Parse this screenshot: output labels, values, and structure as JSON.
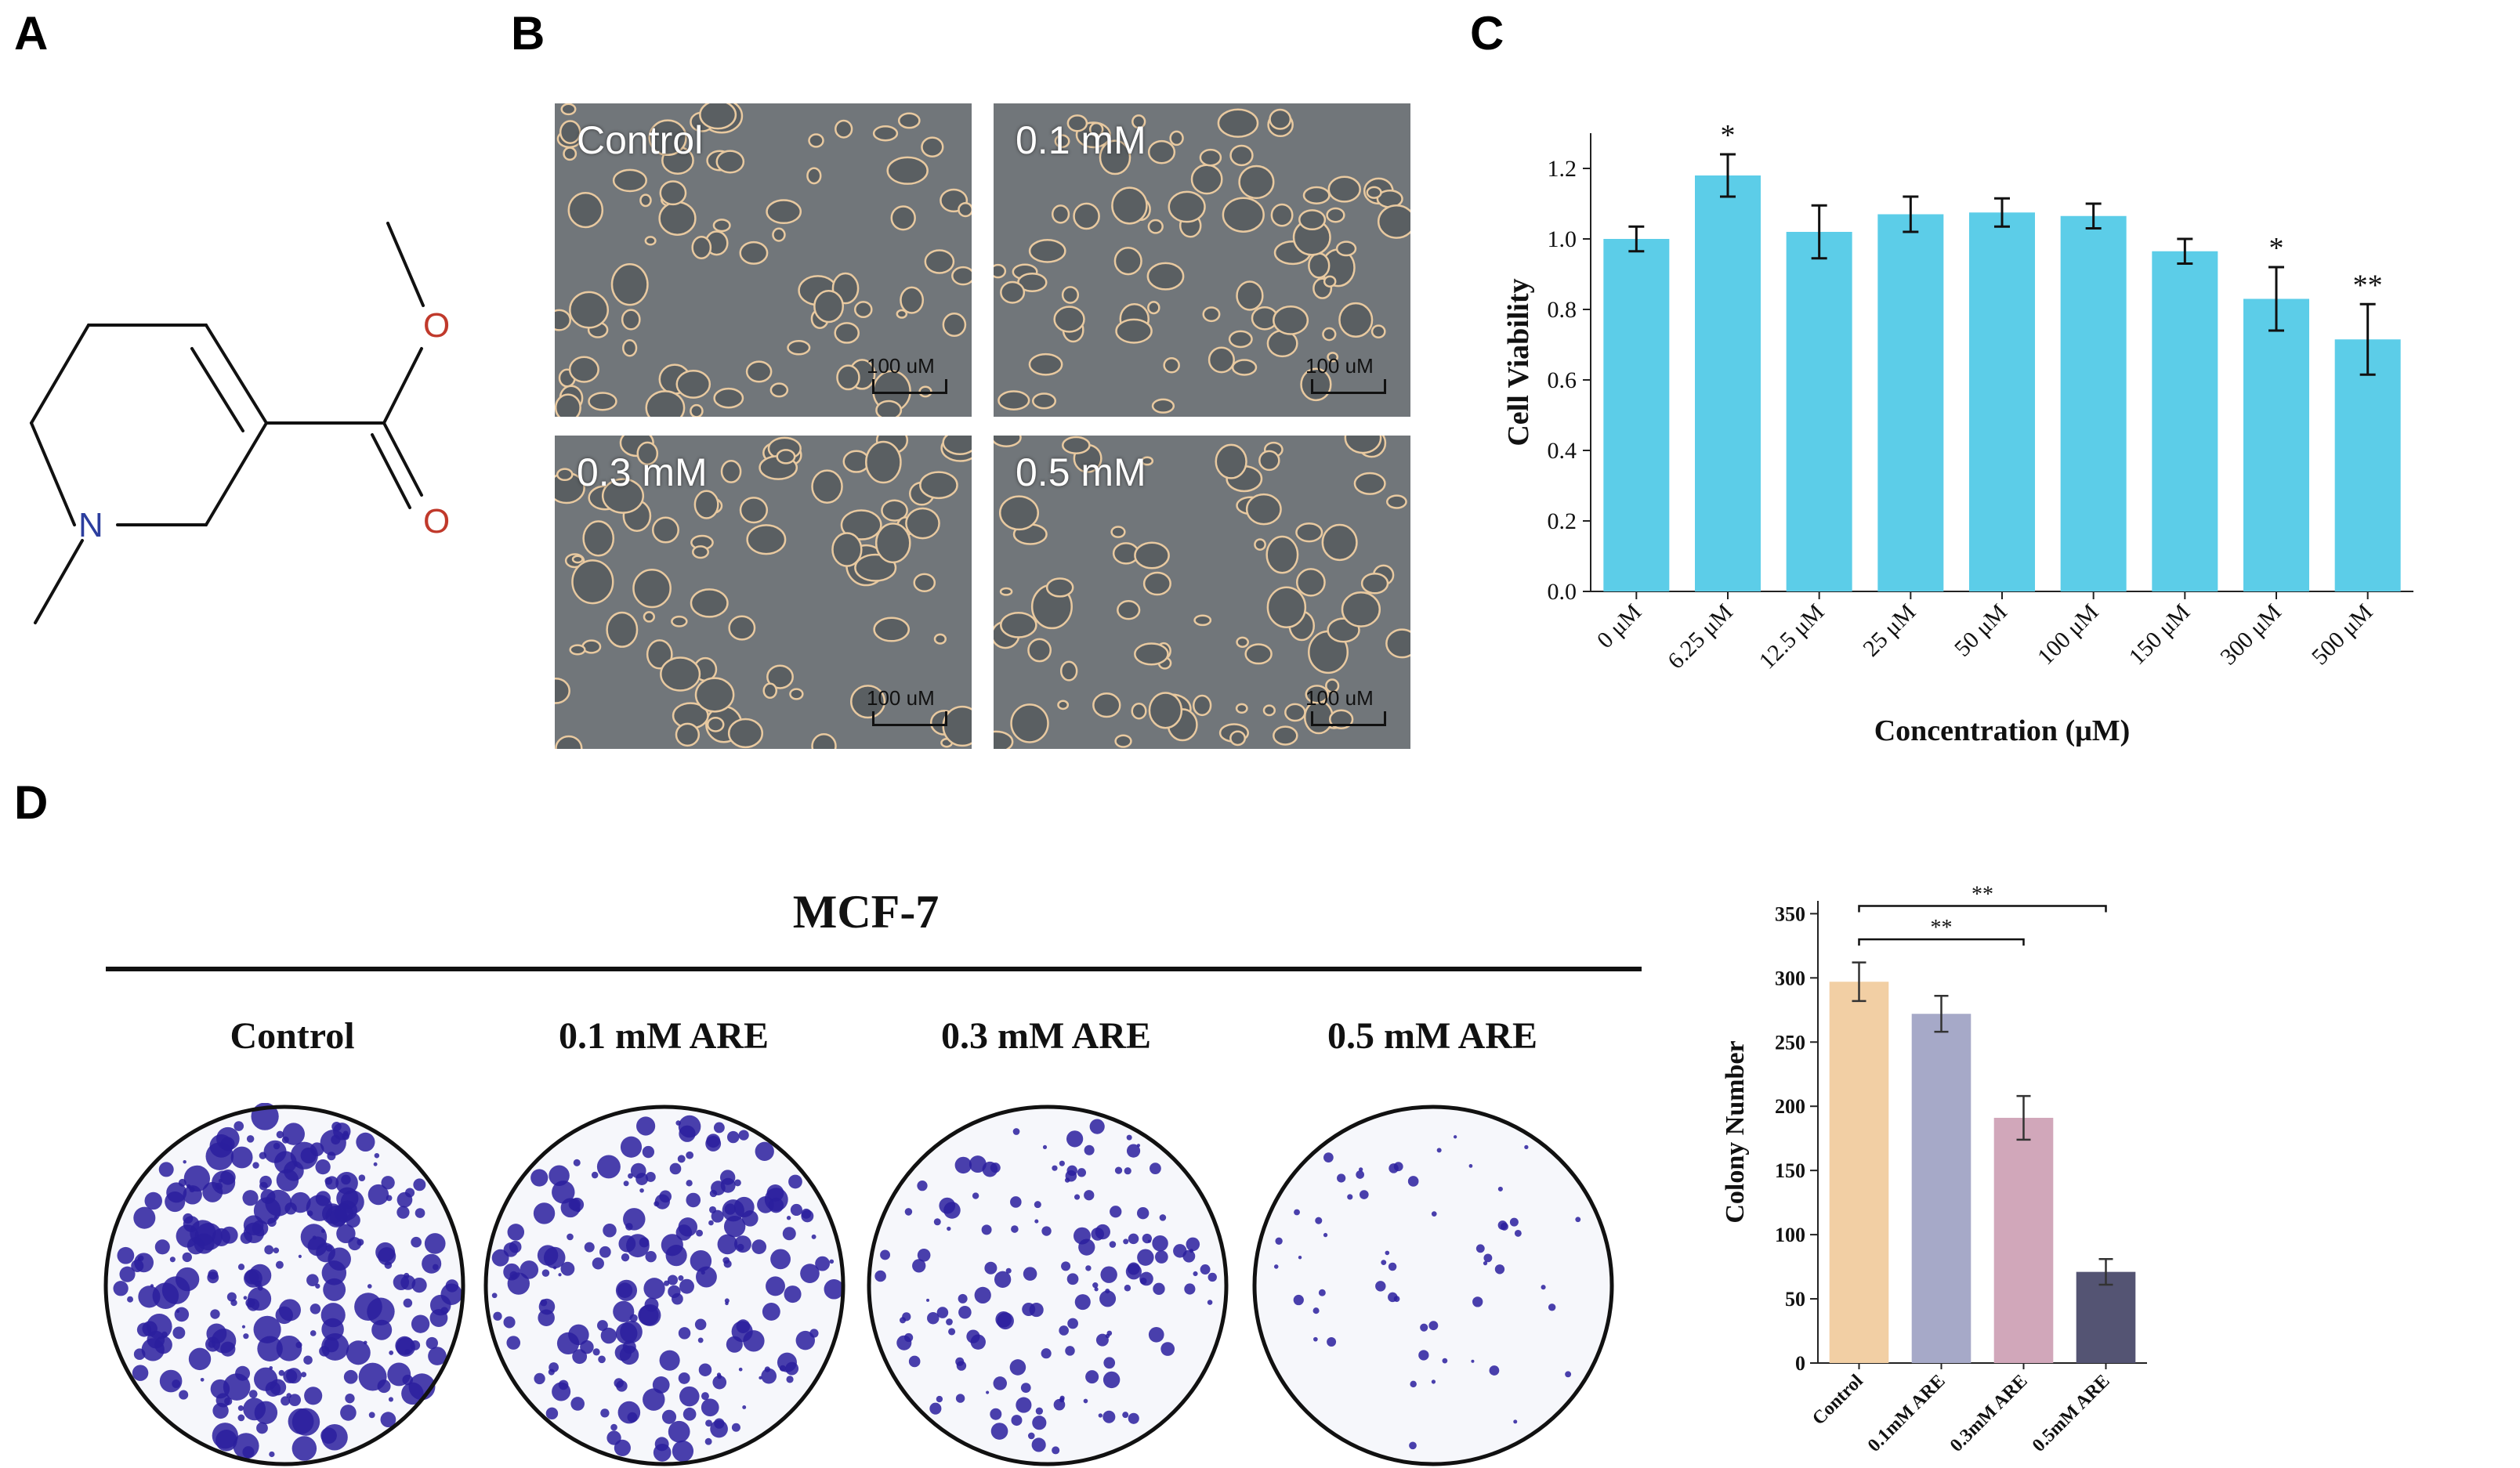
{
  "panels": {
    "a": "A",
    "b": "B",
    "c": "C",
    "d": "D"
  },
  "molecule": {
    "atoms": {
      "o1": "O",
      "o2": "O",
      "n": "N"
    }
  },
  "micrographs": {
    "scale_bar": "100 uM",
    "items": [
      {
        "label": "Control"
      },
      {
        "label": "0.1 mM"
      },
      {
        "label": "0.3 mM"
      },
      {
        "label": "0.5 mM"
      }
    ]
  },
  "colony": {
    "title": "MCF-7",
    "labels": [
      "Control",
      "0.1 mM ARE",
      "0.3 mM ARE",
      "0.5 mM ARE"
    ]
  },
  "colors": {
    "viability_bar": "#5ccde8",
    "bar_control": "#f2cfa4",
    "bar_01": "#a6a9c8",
    "bar_03": "#d1a7ba",
    "bar_05": "#545473",
    "colony_dye": "#2a1f9e"
  },
  "chart_data": [
    {
      "id": "C",
      "type": "bar",
      "xlabel": "Concentration (μM)",
      "ylabel": "Cell Viability",
      "categories": [
        "0 μM",
        "6.25 μM",
        "12.5 μM",
        "25 μM",
        "50 μM",
        "100 μM",
        "150 μM",
        "300 μM",
        "500 μM"
      ],
      "values": [
        1.0,
        1.18,
        1.02,
        1.07,
        1.075,
        1.065,
        0.965,
        0.83,
        0.715
      ],
      "errors": [
        0.035,
        0.06,
        0.075,
        0.05,
        0.04,
        0.035,
        0.035,
        0.09,
        0.1
      ],
      "significance": [
        "",
        "*",
        "",
        "",
        "",
        "",
        "",
        "*",
        "**"
      ],
      "ylim": [
        0,
        1.3
      ],
      "yticks": [
        0.0,
        0.2,
        0.4,
        0.6,
        0.8,
        1.0,
        1.2
      ],
      "ytick_labels": [
        "0.0",
        "0.2",
        "0.4",
        "0.6",
        "0.8",
        "1.0",
        "1.2"
      ]
    },
    {
      "id": "D",
      "type": "bar",
      "xlabel": "",
      "ylabel": "Colony Number",
      "categories": [
        "Control",
        "0.1mM ARE",
        "0.3mM ARE",
        "0.5mM ARE"
      ],
      "values": [
        297,
        272,
        191,
        71
      ],
      "errors": [
        15,
        14,
        17,
        10
      ],
      "ylim": [
        0,
        360
      ],
      "yticks": [
        0,
        50,
        100,
        150,
        200,
        250,
        300,
        350
      ],
      "ytick_labels": [
        "0",
        "50",
        "100",
        "150",
        "200",
        "250",
        "300",
        "350"
      ],
      "brackets": [
        {
          "from": "Control",
          "to": "0.3mM ARE",
          "label": "**"
        },
        {
          "from": "Control",
          "to": "0.5mM ARE",
          "label": "**"
        }
      ]
    }
  ]
}
